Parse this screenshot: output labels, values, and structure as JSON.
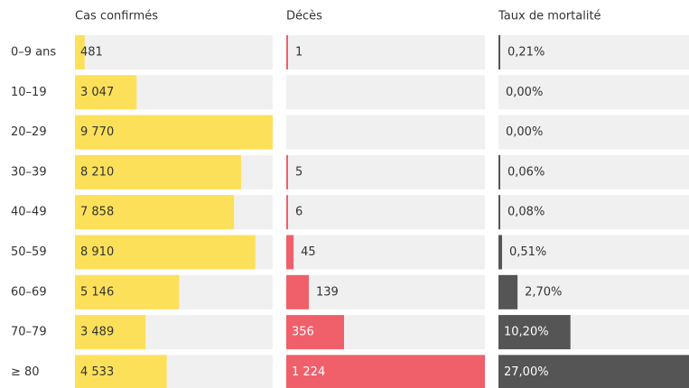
{
  "chart_data": {
    "type": "bar",
    "categories": [
      "0–9 ans",
      "10–19",
      "20–29",
      "30–39",
      "40–49",
      "50–59",
      "60–69",
      "70–79",
      "≥ 80"
    ],
    "series": [
      {
        "name": "Cas confirmés",
        "color": "#fde05a",
        "values": [
          481,
          3047,
          9770,
          8210,
          7858,
          8910,
          5146,
          3489,
          4533
        ],
        "value_labels": [
          "481",
          "3 047",
          "9 770",
          "8 210",
          "7 858",
          "8 910",
          "5 146",
          "3 489",
          "4 533"
        ]
      },
      {
        "name": "Décès",
        "color": "#f0606a",
        "values": [
          1,
          null,
          null,
          5,
          6,
          45,
          139,
          356,
          1224
        ],
        "value_labels": [
          "1",
          null,
          null,
          "5",
          "6",
          "45",
          "139",
          "356",
          "1 224"
        ]
      },
      {
        "name": "Taux de mortalité",
        "color": "#555555",
        "values": [
          0.21,
          0,
          0,
          0.06,
          0.08,
          0.51,
          2.7,
          10.2,
          27
        ],
        "value_labels": [
          "0,21%",
          "0,00%",
          "0,00%",
          "0,06%",
          "0,08%",
          "0,51%",
          "2,70%",
          "10,20%",
          "27,00%"
        ]
      }
    ]
  }
}
